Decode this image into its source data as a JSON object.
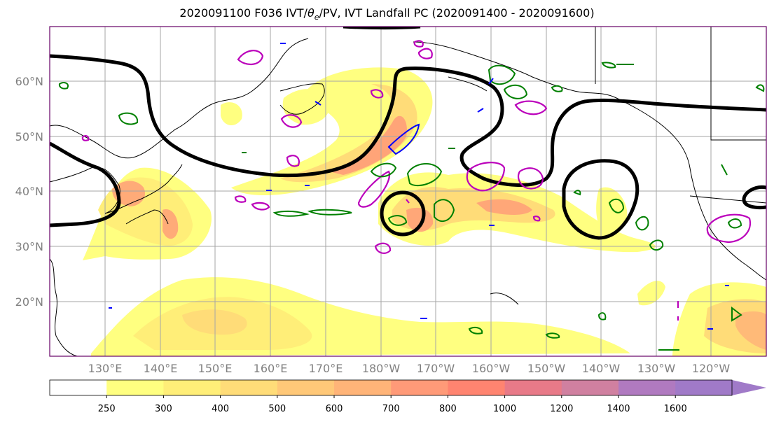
{
  "title": {
    "prefix": "2020091100 F036 IVT/",
    "theta": "θ",
    "theta_sub": "e",
    "suffix": "/PV, IVT Landfall PC (2020091400 - 2020091600)"
  },
  "map": {
    "lat_labels": [
      "60°N",
      "50°N",
      "40°N",
      "30°N",
      "20°N"
    ],
    "lon_labels": [
      "130°E",
      "140°E",
      "150°E",
      "160°E",
      "170°E",
      "180°W",
      "170°W",
      "160°W",
      "150°W",
      "140°W",
      "130°W",
      "120°W"
    ],
    "colors": {
      "theta_e_contour": "#000000",
      "pv_positive": "#008000",
      "pv_negative": "#0000ff",
      "landfall_pc": "#bb00bb",
      "frame": "#660066"
    }
  },
  "colorbar": {
    "ticks": [
      "250",
      "300",
      "400",
      "500",
      "600",
      "700",
      "800",
      "1000",
      "1200",
      "1400",
      "1600"
    ],
    "colors": [
      "#ffffff",
      "#ffff80",
      "#ffee78",
      "#ffdc78",
      "#ffc878",
      "#ffb478",
      "#ff9a78",
      "#ff8470",
      "#e87a88",
      "#d080a0",
      "#b07ac0",
      "#a07ac8"
    ]
  }
}
